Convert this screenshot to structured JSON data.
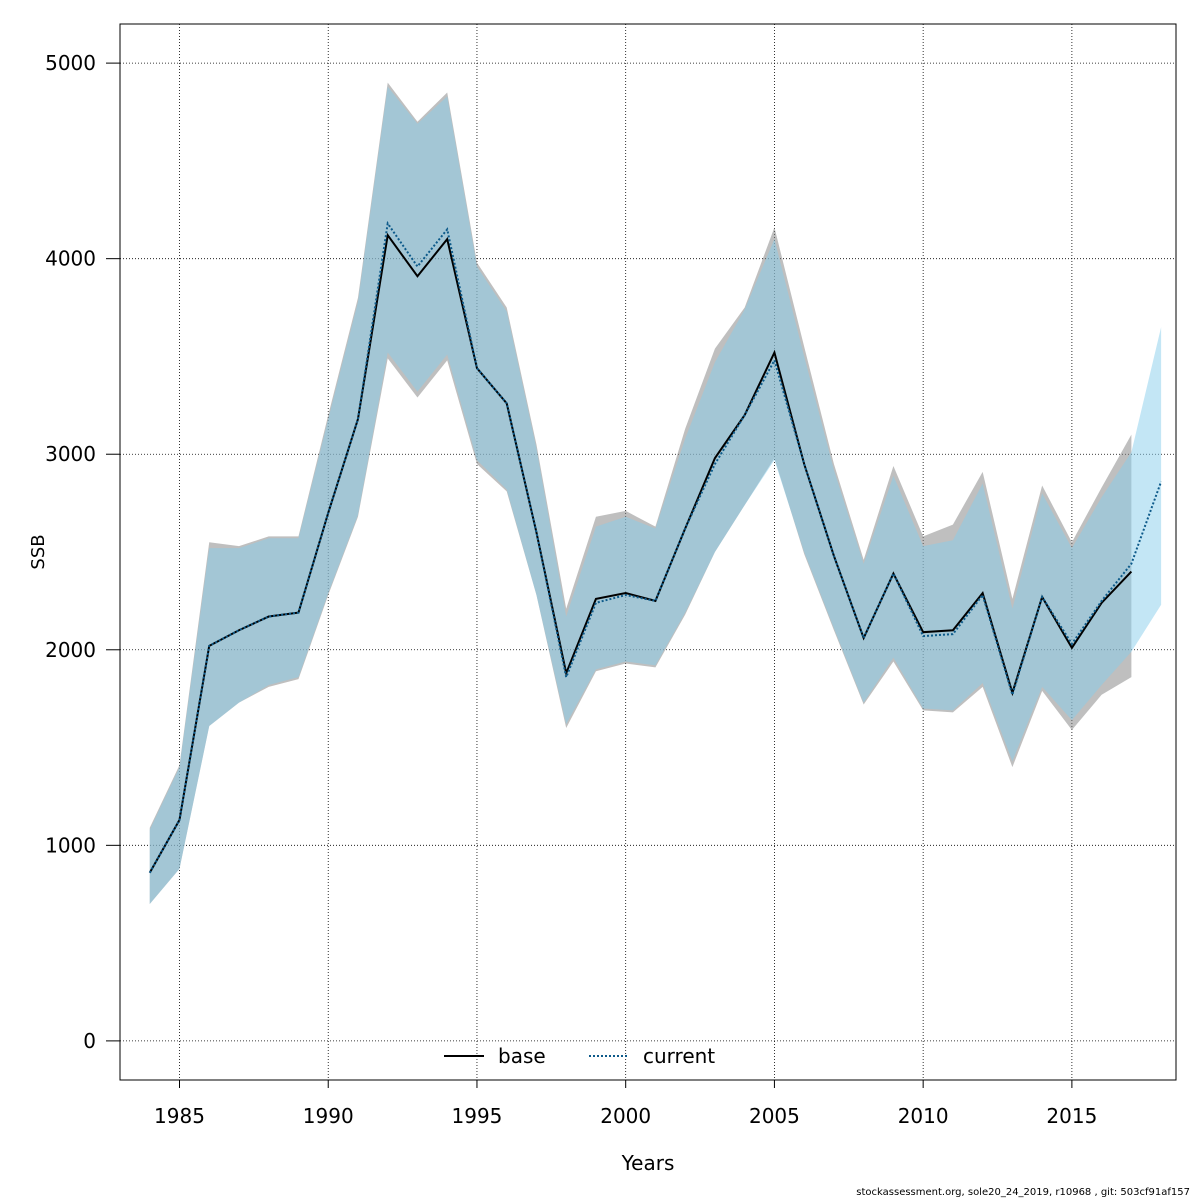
{
  "chart_data": {
    "type": "area",
    "xlabel": "Years",
    "ylabel": "SSB",
    "xlim": [
      1983,
      2018.5
    ],
    "ylim": [
      -200,
      5200
    ],
    "x_ticks": [
      1985,
      1990,
      1995,
      2000,
      2005,
      2010,
      2015
    ],
    "y_ticks": [
      0,
      1000,
      2000,
      3000,
      4000,
      5000
    ],
    "grid": true,
    "legend_position": "bottom",
    "colors": {
      "base_band": "#808080",
      "current_band": "#87ceeb",
      "base_line": "#000000",
      "current_line": "#0d5a8a"
    },
    "series": [
      {
        "name": "base",
        "line_style": "solid",
        "x": [
          1984,
          1985,
          1986,
          1987,
          1988,
          1989,
          1990,
          1991,
          1992,
          1993,
          1994,
          1995,
          1996,
          1997,
          1998,
          1999,
          2000,
          2001,
          2002,
          2003,
          2004,
          2005,
          2006,
          2007,
          2008,
          2009,
          2010,
          2011,
          2012,
          2013,
          2014,
          2015,
          2016,
          2017
        ],
        "values": [
          860,
          1130,
          2020,
          2100,
          2170,
          2190,
          2700,
          3180,
          4120,
          3910,
          4100,
          3440,
          3260,
          2600,
          1880,
          2260,
          2290,
          2250,
          2620,
          2980,
          3200,
          3520,
          2950,
          2480,
          2060,
          2390,
          2090,
          2100,
          2290,
          1780,
          2270,
          2010,
          2240,
          2400
        ],
        "lower": [
          700,
          880,
          1610,
          1730,
          1810,
          1850,
          2280,
          2680,
          3490,
          3290,
          3480,
          2950,
          2810,
          2280,
          1600,
          1890,
          1930,
          1910,
          2180,
          2500,
          2740,
          2980,
          2490,
          2100,
          1720,
          1940,
          1690,
          1680,
          1810,
          1400,
          1790,
          1590,
          1770,
          1860
        ],
        "upper": [
          1090,
          1410,
          2550,
          2530,
          2580,
          2580,
          3200,
          3800,
          4900,
          4700,
          4850,
          3980,
          3750,
          3050,
          2210,
          2680,
          2710,
          2630,
          3130,
          3540,
          3750,
          4160,
          3550,
          2950,
          2460,
          2940,
          2580,
          2640,
          2910,
          2260,
          2840,
          2550,
          2830,
          3100
        ]
      },
      {
        "name": "current",
        "line_style": "dotted",
        "x": [
          1984,
          1985,
          1986,
          1987,
          1988,
          1989,
          1990,
          1991,
          1992,
          1993,
          1994,
          1995,
          1996,
          1997,
          1998,
          1999,
          2000,
          2001,
          2002,
          2003,
          2004,
          2005,
          2006,
          2007,
          2008,
          2009,
          2010,
          2011,
          2012,
          2013,
          2014,
          2015,
          2016,
          2017,
          2018
        ],
        "values": [
          860,
          1130,
          2020,
          2100,
          2170,
          2190,
          2700,
          3180,
          4180,
          3960,
          4150,
          3440,
          3260,
          2600,
          1860,
          2240,
          2280,
          2250,
          2620,
          2950,
          3200,
          3480,
          2950,
          2480,
          2060,
          2390,
          2070,
          2080,
          2280,
          1770,
          2270,
          2030,
          2250,
          2440,
          2860
        ],
        "lower": [
          700,
          880,
          1610,
          1730,
          1820,
          1860,
          2290,
          2690,
          3520,
          3320,
          3510,
          2970,
          2820,
          2280,
          1620,
          1900,
          1940,
          1920,
          2190,
          2500,
          2740,
          2970,
          2500,
          2110,
          1730,
          1960,
          1700,
          1690,
          1830,
          1430,
          1810,
          1640,
          1820,
          1990,
          2230
        ],
        "upper": [
          1080,
          1400,
          2520,
          2520,
          2570,
          2570,
          3180,
          3780,
          4880,
          4690,
          4830,
          3960,
          3730,
          3030,
          2170,
          2630,
          2680,
          2620,
          3080,
          3470,
          3740,
          4100,
          3500,
          2920,
          2440,
          2890,
          2530,
          2560,
          2850,
          2210,
          2800,
          2520,
          2780,
          3010,
          3650
        ]
      }
    ]
  },
  "footer_text": "stockassessment.org, sole20_24_2019, r10968 , git: 503cf91af157"
}
